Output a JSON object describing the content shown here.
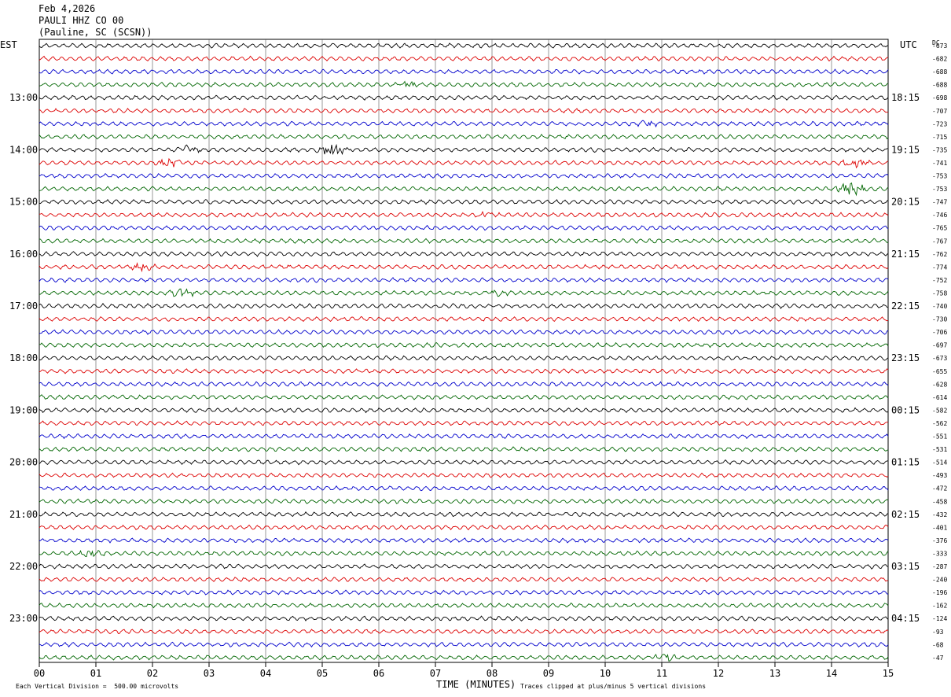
{
  "header": {
    "date": "Feb 4,2026",
    "station": "PAULI HHZ CO 00",
    "location": "(Pauline, SC (SCSN))"
  },
  "labels": {
    "left_zone": "EST",
    "right_zone": "UTC",
    "dc": "DC",
    "xlabel": "TIME (MINUTES)",
    "scale_note": "Each Vertical Division =  500.00 microvolts",
    "clip_note": "Traces clipped at plus/minus 5 vertical divisions"
  },
  "chart_data": {
    "type": "line",
    "title": "PAULI HHZ CO 00",
    "xlabel": "TIME (MINUTES)",
    "x_ticks": [
      "00",
      "01",
      "02",
      "03",
      "04",
      "05",
      "06",
      "07",
      "08",
      "09",
      "10",
      "11",
      "12",
      "13",
      "14",
      "15"
    ],
    "xlim": [
      0,
      15
    ],
    "row_count": 48,
    "row_colors": [
      "#000000",
      "#dd0000",
      "#0000cc",
      "#006600"
    ],
    "left_time_labels": [
      "13:00",
      "14:00",
      "15:00",
      "16:00",
      "17:00",
      "18:00",
      "19:00",
      "20:00",
      "21:00",
      "22:00",
      "23:00"
    ],
    "right_time_labels": [
      "18:15",
      "19:15",
      "20:15",
      "21:15",
      "22:15",
      "23:15",
      "00:15",
      "01:15",
      "02:15",
      "03:15",
      "04:15"
    ],
    "dc_offsets": [
      -673,
      -682,
      -688,
      -688,
      -698,
      -707,
      -723,
      -715,
      -735,
      -741,
      -753,
      -753,
      -747,
      -746,
      -765,
      -767,
      -762,
      -774,
      -752,
      -758,
      -740,
      -730,
      -706,
      -697,
      -673,
      -655,
      -628,
      -614,
      -582,
      -562,
      -551,
      -531,
      -514,
      -493,
      -472,
      -458,
      -432,
      -401,
      -376,
      -333,
      -287,
      -240,
      -196,
      -162,
      -124,
      -93,
      -68,
      -47
    ],
    "events": [
      {
        "row": 8,
        "minute": 5.2,
        "amplitude": "large"
      },
      {
        "row": 8,
        "minute": 2.6,
        "amplitude": "medium"
      },
      {
        "row": 9,
        "minute": 2.3,
        "amplitude": "medium"
      },
      {
        "row": 9,
        "minute": 14.4,
        "amplitude": "medium"
      },
      {
        "row": 11,
        "minute": 14.35,
        "amplitude": "large"
      },
      {
        "row": 13,
        "minute": 7.9,
        "amplitude": "small"
      },
      {
        "row": 17,
        "minute": 1.8,
        "amplitude": "medium"
      },
      {
        "row": 19,
        "minute": 2.5,
        "amplitude": "medium"
      },
      {
        "row": 19,
        "minute": 8.1,
        "amplitude": "small"
      },
      {
        "row": 6,
        "minute": 10.7,
        "amplitude": "small"
      },
      {
        "row": 3,
        "minute": 6.5,
        "amplitude": "small"
      },
      {
        "row": 39,
        "minute": 0.9,
        "amplitude": "small"
      },
      {
        "row": 47,
        "minute": 11.05,
        "amplitude": "medium"
      }
    ]
  }
}
